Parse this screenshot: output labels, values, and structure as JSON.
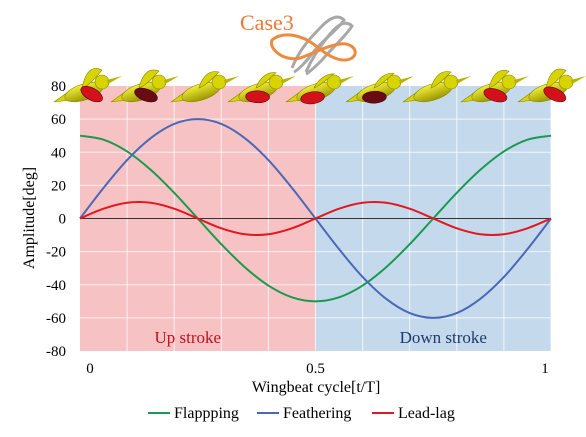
{
  "chart_data": {
    "type": "line",
    "title": "Case3",
    "xlabel": "Wingbeat cycle[t/T]",
    "ylabel": "Amplitude[deg]",
    "xlim": [
      0,
      1
    ],
    "ylim": [
      -80,
      80
    ],
    "x_ticks": [
      {
        "value": 0,
        "label": "0"
      },
      {
        "value": 0.5,
        "label": "0.5"
      },
      {
        "value": 1,
        "label": "1"
      }
    ],
    "y_ticks": [
      {
        "value": 80,
        "label": "80"
      },
      {
        "value": 60,
        "label": "60"
      },
      {
        "value": 40,
        "label": "40"
      },
      {
        "value": 20,
        "label": "20"
      },
      {
        "value": 0,
        "label": "0"
      },
      {
        "value": -20,
        "label": "-20"
      },
      {
        "value": -40,
        "label": "-40"
      },
      {
        "value": -60,
        "label": "-60"
      },
      {
        "value": -80,
        "label": "-80"
      }
    ],
    "grid": true,
    "legend_position": "bottom",
    "regions": [
      {
        "label": "Up stroke",
        "x_start": 0,
        "x_end": 0.5,
        "fill": "#f7c2c4",
        "text_color": "#c0121e"
      },
      {
        "label": "Down stroke",
        "x_start": 0.5,
        "x_end": 1,
        "fill": "#c4d9ec",
        "text_color": "#1f3b6e"
      }
    ],
    "x": [
      0,
      0.05,
      0.1,
      0.15,
      0.2,
      0.25,
      0.3,
      0.35,
      0.4,
      0.45,
      0.5,
      0.55,
      0.6,
      0.65,
      0.7,
      0.75,
      0.8,
      0.85,
      0.9,
      0.95,
      1
    ],
    "series": [
      {
        "name": "Flappping",
        "color": "#1a9a50",
        "values": [
          50,
          47.6,
          40.5,
          29.4,
          15.5,
          0,
          -15.5,
          -29.4,
          -40.5,
          -47.6,
          -50,
          -47.6,
          -40.5,
          -29.4,
          -15.5,
          0,
          15.5,
          29.4,
          40.5,
          47.6,
          50
        ]
      },
      {
        "name": "Feathering",
        "color": "#4a68b8",
        "values": [
          0,
          18.5,
          35.3,
          48.5,
          57.1,
          60,
          57.1,
          48.5,
          35.3,
          18.5,
          0,
          -18.5,
          -35.3,
          -48.5,
          -57.1,
          -60,
          -57.1,
          -48.5,
          -35.3,
          -18.5,
          0
        ]
      },
      {
        "name": "Lead-lag",
        "color": "#e0191f",
        "values": [
          0,
          5.9,
          9.5,
          9.5,
          5.9,
          0,
          -5.9,
          -9.5,
          -9.5,
          -5.9,
          0,
          5.9,
          9.5,
          9.5,
          5.9,
          0,
          -5.9,
          -9.5,
          -9.5,
          -5.9,
          0
        ]
      }
    ]
  },
  "colors": {
    "title": "#ea7a3a",
    "trajectory_orange": "#ee8a40",
    "trajectory_gray": "#a8a8a8",
    "bird_body": "#d8d400",
    "bird_wing_red": "#d4101a",
    "bird_wing_dark": "#6a0a12"
  },
  "birds": [
    {
      "wing": "red",
      "wing_phase": 0.95
    },
    {
      "wing": "dark",
      "wing_phase": 0.5
    },
    {
      "wing": "none",
      "wing_phase": 0.0
    },
    {
      "wing": "red",
      "wing_phase": -0.4
    },
    {
      "wing": "red",
      "wing_phase": -0.9
    },
    {
      "wing": "dark",
      "wing_phase": -0.6
    },
    {
      "wing": "none",
      "wing_phase": 0.0
    },
    {
      "wing": "red",
      "wing_phase": 0.4
    },
    {
      "wing": "red",
      "wing_phase": 0.8
    }
  ]
}
